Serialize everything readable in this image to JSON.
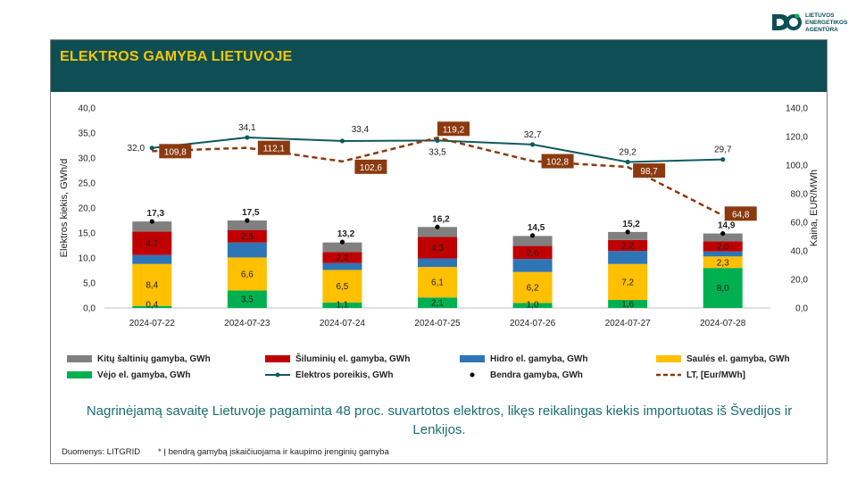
{
  "header": {
    "title": "ELEKTROS GAMYBA LIETUVOJE"
  },
  "logo": {
    "lines": [
      "LIETUVOS",
      "ENERGETIKOS",
      "AGENTŪRA"
    ]
  },
  "colors": {
    "header_bg": "#0e4f55",
    "title": "#f7c600",
    "other": "#808080",
    "thermal": "#c00000",
    "hydro": "#2e75b6",
    "solar": "#ffc000",
    "wind": "#00b050",
    "demand": "#0e5a5e",
    "price": "#8b3a0f"
  },
  "chart_data": {
    "type": "bar",
    "categories": [
      "2024-07-22",
      "2024-07-23",
      "2024-07-24",
      "2024-07-25",
      "2024-07-26",
      "2024-07-27",
      "2024-07-28"
    ],
    "ylabel": "Elektros kiekis, GWh/d",
    "y2label": "Kaina, EUR/MWh",
    "ylim": [
      0,
      40
    ],
    "y2lim": [
      0,
      140
    ],
    "yticks": [
      "0,0",
      "5,0",
      "10,0",
      "15,0",
      "20,0",
      "25,0",
      "30,0",
      "35,0",
      "40,0"
    ],
    "y2ticks": [
      "0,0",
      "20,0",
      "40,0",
      "60,0",
      "80,0",
      "100,0",
      "120,0",
      "140,0"
    ],
    "stacked_series": [
      {
        "name": "Vėjo el. gamyba, GWh",
        "color": "#00b050",
        "values": [
          0.4,
          3.5,
          1.1,
          2.1,
          1.0,
          1.6,
          8.0
        ],
        "labels": [
          "0,4",
          "3,5",
          "1,1",
          "2,1",
          "1,0",
          "1,6",
          "8,0"
        ]
      },
      {
        "name": "Saulės el. gamyba, GWh",
        "color": "#ffc000",
        "values": [
          8.4,
          6.6,
          6.5,
          6.1,
          6.2,
          7.2,
          2.3
        ],
        "labels": [
          "8,4",
          "6,6",
          "6,5",
          "6,1",
          "6,2",
          "7,2",
          "2,3"
        ]
      },
      {
        "name": "Hidro el. gamyba, GWh",
        "color": "#2e75b6",
        "values": [
          1.8,
          3.0,
          1.4,
          1.7,
          2.6,
          2.6,
          1.0
        ],
        "labels": [
          "",
          "",
          "",
          "",
          "",
          "",
          ""
        ]
      },
      {
        "name": "Šiluminių el. gamyba, GWh",
        "color": "#c00000",
        "values": [
          4.7,
          2.5,
          2.2,
          4.3,
          2.6,
          2.2,
          2.0
        ],
        "labels": [
          "4,7",
          "2,5",
          "2,2",
          "4,3",
          "2,6",
          "2,2",
          "2,0"
        ]
      },
      {
        "name": "Kitų šaltinių gamyba,  GWh",
        "color": "#808080",
        "values": [
          2.0,
          1.9,
          1.9,
          2.0,
          2.0,
          1.6,
          1.6
        ],
        "labels": [
          "",
          "",
          "",
          "",
          "",
          "",
          ""
        ]
      }
    ],
    "total": {
      "name": "Bendra gamyba, GWh",
      "values": [
        17.3,
        17.5,
        13.2,
        16.2,
        14.5,
        15.2,
        14.9
      ],
      "labels": [
        "17,3",
        "17,5",
        "13,2",
        "16,2",
        "14,5",
        "15,2",
        "14,9"
      ]
    },
    "demand": {
      "name": "Elektros poreikis, GWh",
      "values": [
        32.0,
        34.1,
        33.4,
        33.5,
        32.7,
        29.2,
        29.7
      ],
      "labels": [
        "32,0",
        "34,1",
        "33,4",
        "33,5",
        "32,7",
        "29,2",
        "29,7"
      ]
    },
    "price": {
      "name": "LT, [Eur/MWh]",
      "values": [
        109.8,
        112.1,
        102.6,
        119.2,
        102.8,
        98.7,
        64.8
      ],
      "labels": [
        "109,8",
        "112,1",
        "102,6",
        "119,2",
        "102,8",
        "98,7",
        "64,8"
      ]
    },
    "legend": [
      "Kitų šaltinių gamyba,  GWh",
      "Šiluminių el. gamyba, GWh",
      "Hidro el. gamyba, GWh",
      "Saulės el. gamyba, GWh",
      "Vėjo el. gamyba, GWh",
      "Elektros poreikis, GWh",
      "Bendra gamyba, GWh",
      "LT, [Eur/MWh]"
    ]
  },
  "caption": "Nagrinėjamą savaitę Lietuvoje pagaminta 48 proc. suvartotos elektros, likęs reikalingas kiekis importuotas iš Švedijos ir Lenkijos.",
  "source": "Duomenys: LITGRID",
  "footnote": "* Į bendrą gamybą įskaičiuojama ir kaupimo įrenginių gamyba"
}
